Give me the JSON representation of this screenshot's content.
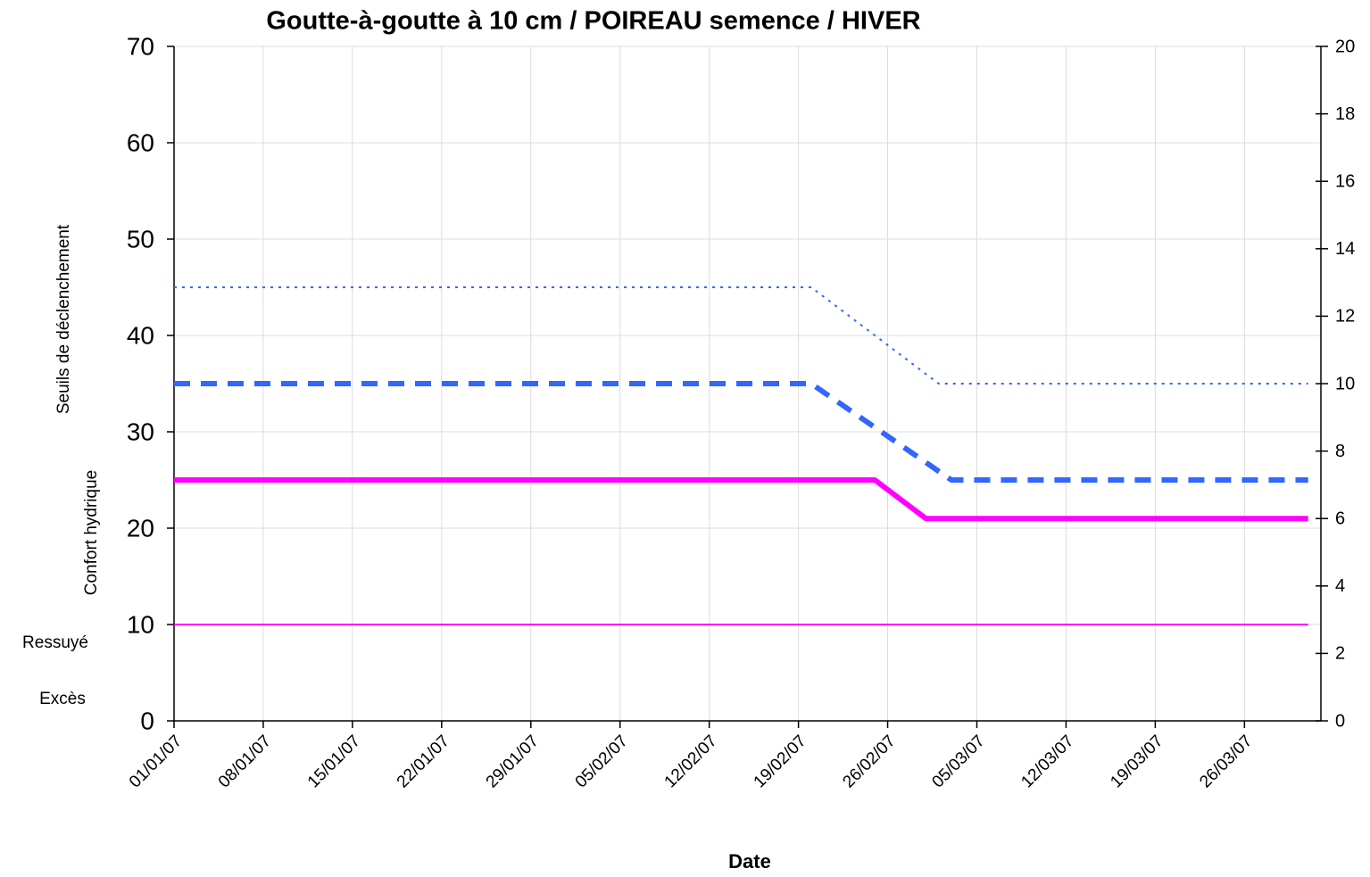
{
  "chart_data": {
    "type": "line",
    "title": "Goutte-à-goutte à 10 cm / POIREAU semence / HIVER",
    "x_label": "Date",
    "annotations": [
      "Seuils de déclenchement",
      "Confort hydrique",
      "Ressuyé",
      "Excès"
    ],
    "xlim": [
      "01/01/07",
      "01/04/07"
    ],
    "xticks": [
      "01/01/07",
      "08/01/07",
      "15/01/07",
      "22/01/07",
      "29/01/07",
      "05/02/07",
      "12/02/07",
      "19/02/07",
      "26/02/07",
      "05/03/07",
      "12/03/07",
      "19/03/07",
      "26/03/07"
    ],
    "ylim": [
      0,
      70
    ],
    "yticks": [
      0,
      10,
      20,
      30,
      40,
      50,
      60,
      70
    ],
    "y2lim": [
      0,
      20
    ],
    "y2ticks": [
      0,
      2,
      4,
      6,
      8,
      10,
      12,
      14,
      16,
      18,
      20
    ],
    "grid": true,
    "series": [
      {
        "color": "#3366ff",
        "style": "dotted",
        "weight": "thin",
        "x": [
          "01/01/07",
          "20/02/07",
          "02/03/07",
          "31/03/07"
        ],
        "values": [
          45,
          45,
          35,
          35
        ]
      },
      {
        "color": "#3366ff",
        "style": "dashed",
        "weight": "thick",
        "x": [
          "01/01/07",
          "20/02/07",
          "03/03/07",
          "31/03/07"
        ],
        "values": [
          35,
          35,
          25,
          25
        ]
      },
      {
        "color": "#ff00ff",
        "style": "solid",
        "weight": "thick",
        "x": [
          "01/01/07",
          "25/02/07",
          "27/02/07",
          "28/02/07",
          "01/03/07",
          "31/03/07"
        ],
        "values": [
          25,
          25,
          23,
          22,
          21,
          21
        ]
      },
      {
        "color": "#ff00ff",
        "style": "solid",
        "weight": "thin",
        "x": [
          "01/01/07",
          "31/03/07"
        ],
        "values": [
          10,
          10
        ]
      }
    ]
  }
}
